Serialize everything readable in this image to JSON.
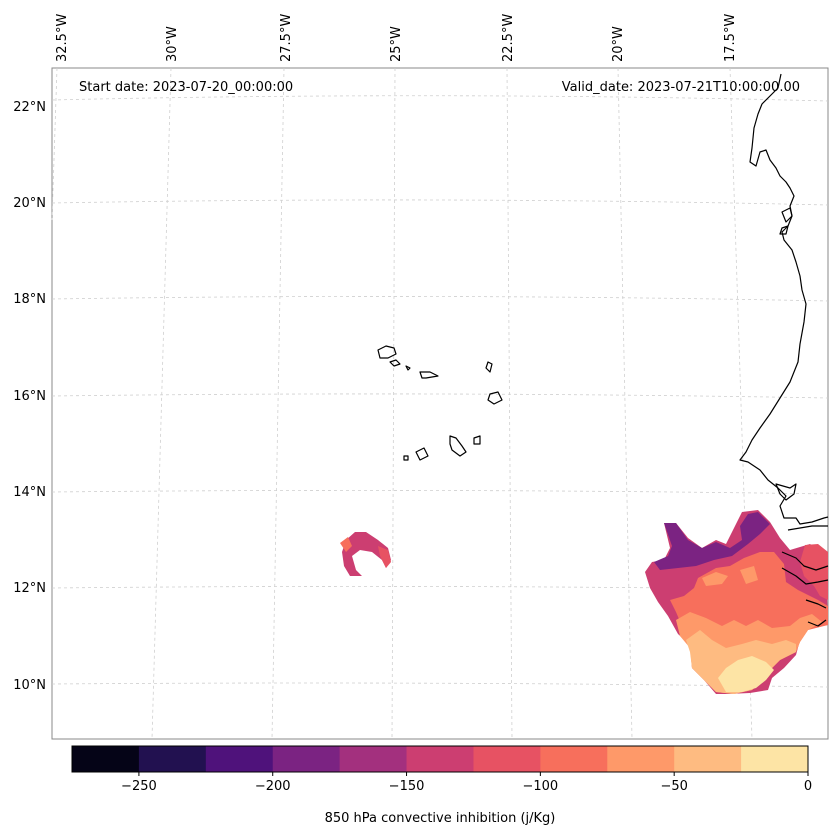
{
  "header": {
    "start_date": "Start date: 2023-07-20_00:00:00",
    "valid_date": "Valid_date: 2023-07-21T10:00:00.00"
  },
  "longitude_labels": [
    "32.5°W",
    "30°W",
    "27.5°W",
    "25°W",
    "22.5°W",
    "20°W",
    "17.5°W"
  ],
  "latitude_labels": [
    "22°N",
    "20°N",
    "18°N",
    "16°N",
    "14°N",
    "12°N",
    "10°N"
  ],
  "colorbar": {
    "label": "850 hPa convective inhibition (j/Kg)",
    "ticks": [
      "−250",
      "−200",
      "−150",
      "−100",
      "−50",
      "0"
    ],
    "min": -275,
    "max": 0,
    "step": 25,
    "colors": [
      "#050417",
      "#221150",
      "#4f127b",
      "#7b2382",
      "#a3307e",
      "#cc3e71",
      "#e75263",
      "#f76f5c",
      "#fe9969",
      "#febb81",
      "#fde4a5"
    ]
  },
  "colors": {
    "background": "#ffffff",
    "gridline": "#cfcfcf",
    "coastline": "#000000"
  }
}
